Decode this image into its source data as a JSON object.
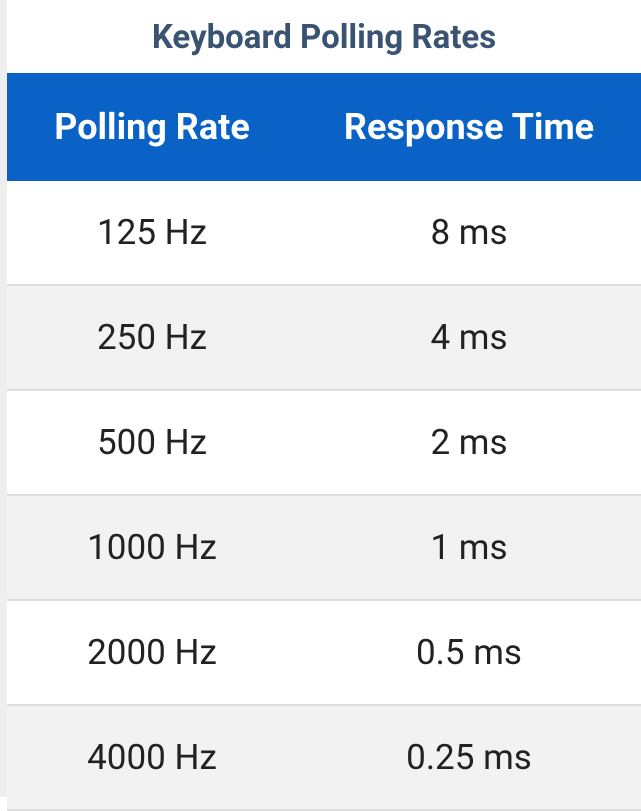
{
  "title": "Keyboard Polling Rates",
  "table": {
    "headers": [
      "Polling Rate",
      "Response Time"
    ],
    "rows": [
      [
        "125 Hz",
        "8 ms"
      ],
      [
        "250 Hz",
        "4 ms"
      ],
      [
        "500 Hz",
        "2 ms"
      ],
      [
        "1000 Hz",
        "1 ms"
      ],
      [
        "2000 Hz",
        "0.5 ms"
      ],
      [
        "4000 Hz",
        "0.25 ms"
      ]
    ]
  }
}
